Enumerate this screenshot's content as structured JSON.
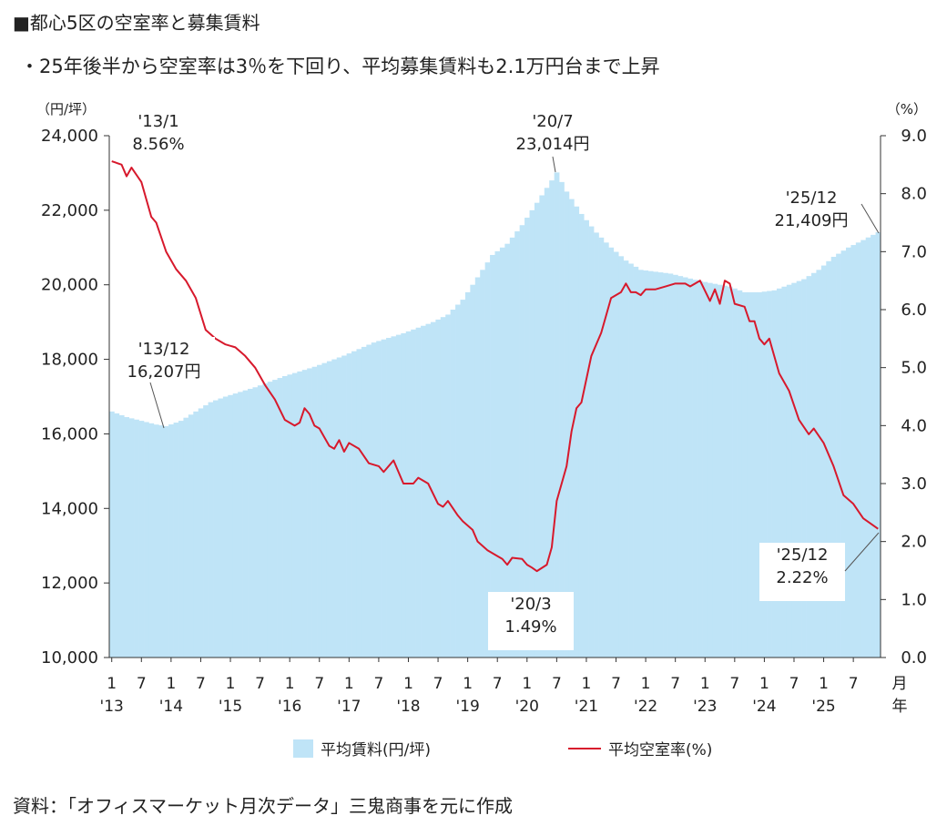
{
  "header": {
    "title": "■都心5区の空室率と募集賃料",
    "subtitle": "・25年後半から空室率は3％を下回り、平均募集賃料も2.1万円台まで上昇"
  },
  "source": "資料：「オフィスマーケット月次データ」三鬼商事を元に作成",
  "colors": {
    "rent_fill": "#bfe4f7",
    "vacancy_line": "#d7192c",
    "axis": "#333333"
  },
  "chart_data": {
    "type": "area+line",
    "x_ticks": [
      {
        "top": "1",
        "bottom": "'13"
      },
      {
        "top": "7",
        "bottom": ""
      },
      {
        "top": "1",
        "bottom": "'14"
      },
      {
        "top": "7",
        "bottom": ""
      },
      {
        "top": "1",
        "bottom": "'15"
      },
      {
        "top": "7",
        "bottom": ""
      },
      {
        "top": "1",
        "bottom": "'16"
      },
      {
        "top": "7",
        "bottom": ""
      },
      {
        "top": "1",
        "bottom": "'17"
      },
      {
        "top": "7",
        "bottom": ""
      },
      {
        "top": "1",
        "bottom": "'18"
      },
      {
        "top": "7",
        "bottom": ""
      },
      {
        "top": "1",
        "bottom": "'19"
      },
      {
        "top": "7",
        "bottom": ""
      },
      {
        "top": "1",
        "bottom": "'20"
      },
      {
        "top": "7",
        "bottom": ""
      },
      {
        "top": "1",
        "bottom": "'21"
      },
      {
        "top": "7",
        "bottom": ""
      },
      {
        "top": "1",
        "bottom": "'22"
      },
      {
        "top": "7",
        "bottom": ""
      },
      {
        "top": "1",
        "bottom": "'23"
      },
      {
        "top": "7",
        "bottom": ""
      },
      {
        "top": "1",
        "bottom": "'24"
      },
      {
        "top": "7",
        "bottom": ""
      },
      {
        "top": "1",
        "bottom": "'25"
      },
      {
        "top": "7",
        "bottom": ""
      }
    ],
    "x_axis_end_label": [
      "月",
      "年"
    ],
    "x_start": "2013-01",
    "x_end": "2025-12",
    "y_left": {
      "unit_label": "（円/坪）",
      "range": [
        10000,
        24000
      ],
      "ticks": [
        "10,000",
        "12,000",
        "14,000",
        "16,000",
        "18,000",
        "20,000",
        "22,000",
        "24,000"
      ]
    },
    "y_right": {
      "unit_label": "（%）",
      "range": [
        0,
        9
      ],
      "ticks": [
        "0.0",
        "1.0",
        "2.0",
        "3.0",
        "4.0",
        "5.0",
        "6.0",
        "7.0",
        "8.0",
        "9.0"
      ]
    },
    "series": [
      {
        "name": "平均賃料（円/坪）",
        "type": "area",
        "axis": "left",
        "keypoints": [
          [
            "2013-01",
            16600
          ],
          [
            "2013-04",
            16450
          ],
          [
            "2013-07",
            16350
          ],
          [
            "2013-10",
            16250
          ],
          [
            "2013-12",
            16207
          ],
          [
            "2014-03",
            16350
          ],
          [
            "2014-06",
            16600
          ],
          [
            "2014-09",
            16850
          ],
          [
            "2014-12",
            17000
          ],
          [
            "2015-06",
            17250
          ],
          [
            "2015-12",
            17550
          ],
          [
            "2016-06",
            17800
          ],
          [
            "2016-12",
            18100
          ],
          [
            "2017-06",
            18450
          ],
          [
            "2017-12",
            18700
          ],
          [
            "2018-06",
            19000
          ],
          [
            "2018-09",
            19200
          ],
          [
            "2018-12",
            19600
          ],
          [
            "2019-03",
            20200
          ],
          [
            "2019-06",
            20800
          ],
          [
            "2019-09",
            21100
          ],
          [
            "2019-12",
            21600
          ],
          [
            "2020-03",
            22200
          ],
          [
            "2020-06",
            22800
          ],
          [
            "2020-07",
            23014
          ],
          [
            "2020-09",
            22500
          ],
          [
            "2020-12",
            21900
          ],
          [
            "2021-03",
            21400
          ],
          [
            "2021-06",
            21000
          ],
          [
            "2021-09",
            20650
          ],
          [
            "2021-12",
            20400
          ],
          [
            "2022-06",
            20300
          ],
          [
            "2022-12",
            20100
          ],
          [
            "2023-06",
            19950
          ],
          [
            "2023-09",
            19800
          ],
          [
            "2023-12",
            19800
          ],
          [
            "2024-03",
            19850
          ],
          [
            "2024-06",
            20000
          ],
          [
            "2024-09",
            20150
          ],
          [
            "2024-12",
            20400
          ],
          [
            "2025-03",
            20750
          ],
          [
            "2025-06",
            21000
          ],
          [
            "2025-09",
            21200
          ],
          [
            "2025-12",
            21409
          ]
        ]
      },
      {
        "name": "平均空室率（%）",
        "type": "line",
        "axis": "right",
        "keypoints": [
          [
            "2013-01",
            8.56
          ],
          [
            "2013-03",
            8.5
          ],
          [
            "2013-04",
            8.3
          ],
          [
            "2013-05",
            8.45
          ],
          [
            "2013-07",
            8.2
          ],
          [
            "2013-09",
            7.6
          ],
          [
            "2013-10",
            7.5
          ],
          [
            "2013-12",
            7.0
          ],
          [
            "2014-02",
            6.7
          ],
          [
            "2014-04",
            6.5
          ],
          [
            "2014-06",
            6.2
          ],
          [
            "2014-08",
            5.65
          ],
          [
            "2014-10",
            5.5
          ],
          [
            "2014-12",
            5.4
          ],
          [
            "2015-02",
            5.35
          ],
          [
            "2015-04",
            5.2
          ],
          [
            "2015-06",
            5.0
          ],
          [
            "2015-08",
            4.7
          ],
          [
            "2015-10",
            4.45
          ],
          [
            "2015-12",
            4.1
          ],
          [
            "2016-02",
            4.0
          ],
          [
            "2016-03",
            4.05
          ],
          [
            "2016-04",
            4.3
          ],
          [
            "2016-05",
            4.2
          ],
          [
            "2016-06",
            4.0
          ],
          [
            "2016-07",
            3.95
          ],
          [
            "2016-08",
            3.8
          ],
          [
            "2016-09",
            3.65
          ],
          [
            "2016-10",
            3.6
          ],
          [
            "2016-11",
            3.75
          ],
          [
            "2016-12",
            3.55
          ],
          [
            "2017-01",
            3.7
          ],
          [
            "2017-03",
            3.6
          ],
          [
            "2017-05",
            3.35
          ],
          [
            "2017-07",
            3.3
          ],
          [
            "2017-08",
            3.2
          ],
          [
            "2017-10",
            3.4
          ],
          [
            "2017-12",
            3.0
          ],
          [
            "2018-02",
            3.0
          ],
          [
            "2018-03",
            3.1
          ],
          [
            "2018-05",
            3.0
          ],
          [
            "2018-07",
            2.65
          ],
          [
            "2018-08",
            2.6
          ],
          [
            "2018-09",
            2.7
          ],
          [
            "2018-11",
            2.45
          ],
          [
            "2018-12",
            2.35
          ],
          [
            "2019-02",
            2.2
          ],
          [
            "2019-03",
            2.0
          ],
          [
            "2019-05",
            1.85
          ],
          [
            "2019-07",
            1.75
          ],
          [
            "2019-08",
            1.7
          ],
          [
            "2019-09",
            1.6
          ],
          [
            "2019-10",
            1.72
          ],
          [
            "2019-12",
            1.7
          ],
          [
            "2020-01",
            1.6
          ],
          [
            "2020-02",
            1.55
          ],
          [
            "2020-03",
            1.49
          ],
          [
            "2020-05",
            1.6
          ],
          [
            "2020-06",
            1.9
          ],
          [
            "2020-07",
            2.7
          ],
          [
            "2020-09",
            3.3
          ],
          [
            "2020-10",
            3.9
          ],
          [
            "2020-11",
            4.3
          ],
          [
            "2020-12",
            4.4
          ],
          [
            "2021-02",
            5.2
          ],
          [
            "2021-04",
            5.6
          ],
          [
            "2021-06",
            6.2
          ],
          [
            "2021-08",
            6.3
          ],
          [
            "2021-09",
            6.45
          ],
          [
            "2021-10",
            6.3
          ],
          [
            "2021-11",
            6.3
          ],
          [
            "2021-12",
            6.25
          ],
          [
            "2022-01",
            6.35
          ],
          [
            "2022-03",
            6.35
          ],
          [
            "2022-05",
            6.4
          ],
          [
            "2022-07",
            6.45
          ],
          [
            "2022-09",
            6.45
          ],
          [
            "2022-10",
            6.4
          ],
          [
            "2022-12",
            6.5
          ],
          [
            "2023-02",
            6.15
          ],
          [
            "2023-03",
            6.35
          ],
          [
            "2023-04",
            6.1
          ],
          [
            "2023-05",
            6.5
          ],
          [
            "2023-06",
            6.45
          ],
          [
            "2023-07",
            6.1
          ],
          [
            "2023-09",
            6.05
          ],
          [
            "2023-10",
            5.8
          ],
          [
            "2023-11",
            5.8
          ],
          [
            "2023-12",
            5.5
          ],
          [
            "2024-01",
            5.4
          ],
          [
            "2024-02",
            5.5
          ],
          [
            "2024-04",
            4.9
          ],
          [
            "2024-06",
            4.6
          ],
          [
            "2024-08",
            4.1
          ],
          [
            "2024-10",
            3.85
          ],
          [
            "2024-11",
            3.95
          ],
          [
            "2025-01",
            3.7
          ],
          [
            "2025-03",
            3.3
          ],
          [
            "2025-05",
            2.8
          ],
          [
            "2025-07",
            2.65
          ],
          [
            "2025-09",
            2.4
          ],
          [
            "2025-12",
            2.22
          ]
        ]
      }
    ],
    "annotations": [
      {
        "name": "ann-13-1",
        "date": "2013-01",
        "lines": [
          "'13/1",
          "8.56%"
        ]
      },
      {
        "name": "ann-13-12",
        "date": "2013-12",
        "lines": [
          "'13/12",
          "16,207円"
        ]
      },
      {
        "name": "ann-20-7",
        "date": "2020-07",
        "lines": [
          "'20/7",
          "23,014円"
        ]
      },
      {
        "name": "ann-20-3",
        "date": "2020-03",
        "lines": [
          "'20/3",
          "1.49%"
        ]
      },
      {
        "name": "ann-25-12-rent",
        "date": "2025-12",
        "lines": [
          "'25/12",
          "21,409円"
        ]
      },
      {
        "name": "ann-25-12-vac",
        "date": "2025-12",
        "lines": [
          "'25/12",
          "2.22%"
        ]
      }
    ],
    "legend": {
      "placement": "bottom",
      "rent_label": "平均賃料(円/坪)",
      "vacancy_label": "平均空室率(%)"
    }
  }
}
